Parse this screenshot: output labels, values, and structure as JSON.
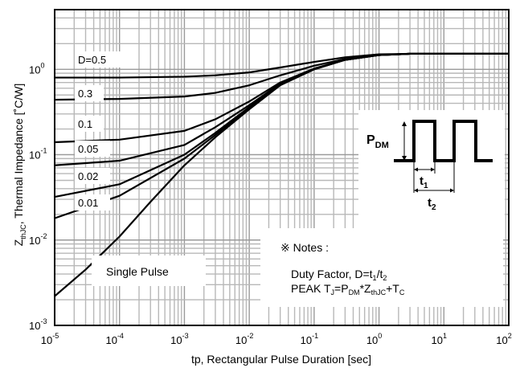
{
  "chart_data": {
    "type": "line",
    "xscale": "log",
    "yscale": "log",
    "xlim": [
      1e-05,
      100
    ],
    "ylim": [
      0.001,
      5
    ],
    "grid": true,
    "xlabel": "tp, Rectangular Pulse Duration [sec]",
    "ylabel": {
      "main": "Z",
      "sub": "thJC",
      "rest": ", Thermal Impedance [˚C/W]"
    },
    "x_ticks": [
      {
        "base": "10",
        "exp": "-5",
        "value": 1e-05
      },
      {
        "base": "10",
        "exp": "-4",
        "value": 0.0001
      },
      {
        "base": "10",
        "exp": "-3",
        "value": 0.001
      },
      {
        "base": "10",
        "exp": "-2",
        "value": 0.01
      },
      {
        "base": "10",
        "exp": "-1",
        "value": 0.1
      },
      {
        "base": "10",
        "exp": "0",
        "value": 1
      },
      {
        "base": "10",
        "exp": "1",
        "value": 10
      },
      {
        "base": "10",
        "exp": "2",
        "value": 100
      }
    ],
    "y_ticks": [
      {
        "base": "10",
        "exp": "0",
        "value": 1
      },
      {
        "base": "10",
        "exp": "-1",
        "value": 0.1
      },
      {
        "base": "10",
        "exp": "-2",
        "value": 0.01
      },
      {
        "base": "10",
        "exp": "-3",
        "value": 0.001
      }
    ],
    "series": [
      {
        "name": "D=0.5",
        "x": [
          1e-05,
          0.0001,
          0.001,
          0.003,
          0.01,
          0.03,
          0.1,
          0.3,
          1,
          3,
          100
        ],
        "y": [
          0.8,
          0.8,
          0.82,
          0.85,
          0.92,
          1.05,
          1.22,
          1.38,
          1.5,
          1.52,
          1.52
        ]
      },
      {
        "name": "0.3",
        "x": [
          1e-05,
          0.0001,
          0.001,
          0.003,
          0.01,
          0.03,
          0.1,
          0.3,
          1,
          3,
          100
        ],
        "y": [
          0.44,
          0.45,
          0.48,
          0.53,
          0.65,
          0.85,
          1.1,
          1.32,
          1.48,
          1.52,
          1.52
        ]
      },
      {
        "name": "0.1",
        "x": [
          1e-05,
          0.0001,
          0.001,
          0.003,
          0.01,
          0.03,
          0.1,
          0.3,
          1,
          3,
          100
        ],
        "y": [
          0.14,
          0.15,
          0.19,
          0.26,
          0.42,
          0.7,
          1.02,
          1.3,
          1.47,
          1.52,
          1.52
        ]
      },
      {
        "name": "0.05",
        "x": [
          1e-05,
          0.0001,
          0.001,
          0.003,
          0.01,
          0.03,
          0.1,
          0.3,
          1,
          3,
          100
        ],
        "y": [
          0.075,
          0.085,
          0.13,
          0.21,
          0.38,
          0.68,
          1.0,
          1.29,
          1.47,
          1.52,
          1.52
        ]
      },
      {
        "name": "0.02",
        "x": [
          1e-05,
          0.0001,
          0.001,
          0.003,
          0.01,
          0.03,
          0.1,
          0.3,
          1,
          3,
          100
        ],
        "y": [
          0.032,
          0.045,
          0.1,
          0.18,
          0.36,
          0.66,
          1.0,
          1.29,
          1.47,
          1.52,
          1.52
        ]
      },
      {
        "name": "0.01",
        "x": [
          1e-05,
          0.0001,
          0.001,
          0.003,
          0.01,
          0.03,
          0.1,
          0.3,
          1,
          3,
          100
        ],
        "y": [
          0.018,
          0.033,
          0.09,
          0.17,
          0.35,
          0.66,
          1.0,
          1.29,
          1.47,
          1.52,
          1.52
        ]
      },
      {
        "name": "Single Pulse",
        "x": [
          1e-05,
          3e-05,
          0.0001,
          0.0003,
          0.001,
          0.003,
          0.01,
          0.03,
          0.1,
          0.3,
          1,
          3,
          100
        ],
        "y": [
          0.0022,
          0.0045,
          0.011,
          0.028,
          0.075,
          0.16,
          0.34,
          0.65,
          1.0,
          1.29,
          1.47,
          1.52,
          1.52
        ]
      }
    ],
    "series_label_text": [
      "D=0.5",
      "0.3",
      "0.1",
      "0.05",
      "0.02",
      "0.01"
    ],
    "single_pulse_label": "Single Pulse",
    "notes": {
      "title": "※ Notes :",
      "duty_prefix": "Duty Factor, D=t",
      "duty_sub1": "1",
      "duty_mid": "/t",
      "duty_sub2": "2",
      "peak_prefix": "PEAK T",
      "peak_sub_j": "J",
      "peak_mid": "=P",
      "peak_sub_dm": "DM",
      "peak_mid2": "*Z",
      "peak_sub_thjc": "thJC",
      "peak_mid3": "+T",
      "peak_sub_c": "C"
    },
    "pulse_diagram": {
      "p_main": "P",
      "p_sub": "DM",
      "t1_main": "t",
      "t1_sub": "1",
      "t2_main": "t",
      "t2_sub": "2"
    }
  }
}
